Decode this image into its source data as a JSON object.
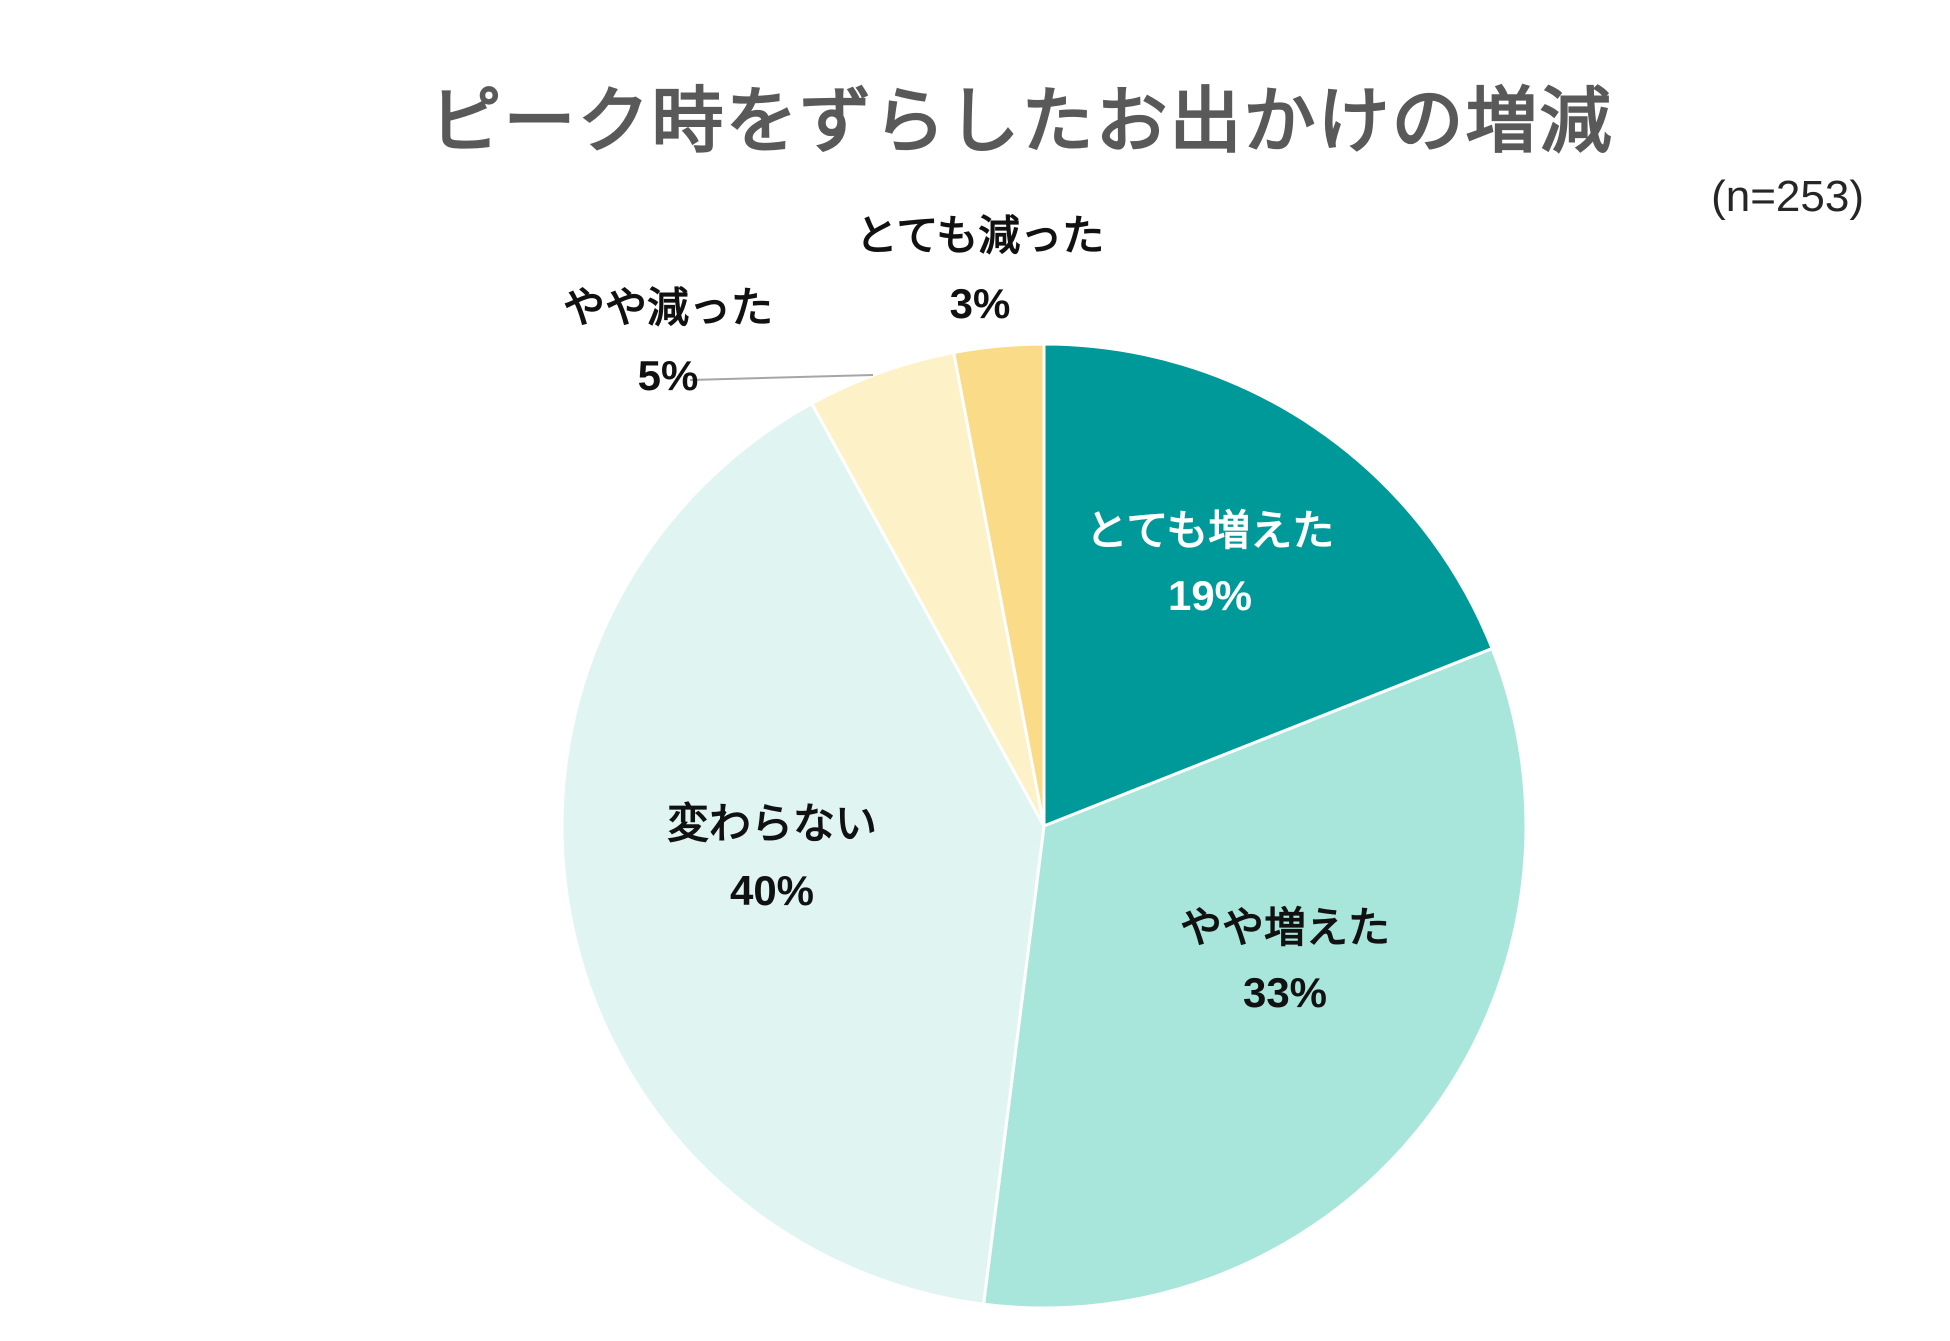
{
  "chart_data": {
    "type": "pie",
    "title": "ピーク時をずらしたお出かけの増減",
    "note": "(n=253)",
    "slices": [
      {
        "label": "とても増えた",
        "value": 19,
        "pct_label": "19%",
        "color": "#009999",
        "text_color": "#ffffff"
      },
      {
        "label": "やや増えた",
        "value": 33,
        "pct_label": "33%",
        "color": "#a8e6dc",
        "text_color": "#111111"
      },
      {
        "label": "変わらない",
        "value": 40,
        "pct_label": "40%",
        "color": "#e0f5f1",
        "text_color": "#111111"
      },
      {
        "label": "やや減った",
        "value": 5,
        "pct_label": "5%",
        "color": "#fdf1c8",
        "text_color": "#111111"
      },
      {
        "label": "とても減った",
        "value": 3,
        "pct_label": "3%",
        "color": "#fadc88",
        "text_color": "#111111"
      }
    ]
  }
}
